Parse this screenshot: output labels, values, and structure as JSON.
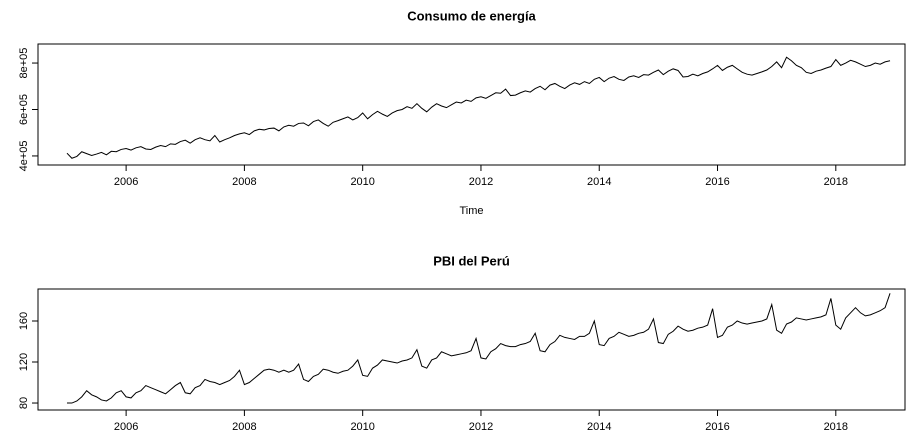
{
  "chart_data": [
    {
      "type": "line",
      "title": "Consumo de energía",
      "x_label": "Time",
      "x": [
        2005,
        2005.083,
        2005.167,
        2005.25,
        2005.333,
        2005.417,
        2005.5,
        2005.583,
        2005.667,
        2005.75,
        2005.833,
        2005.917,
        2006,
        2006.083,
        2006.167,
        2006.25,
        2006.333,
        2006.417,
        2006.5,
        2006.583,
        2006.667,
        2006.75,
        2006.833,
        2006.917,
        2007,
        2007.083,
        2007.167,
        2007.25,
        2007.333,
        2007.417,
        2007.5,
        2007.583,
        2007.667,
        2007.75,
        2007.833,
        2007.917,
        2008,
        2008.083,
        2008.167,
        2008.25,
        2008.333,
        2008.417,
        2008.5,
        2008.583,
        2008.667,
        2008.75,
        2008.833,
        2008.917,
        2009,
        2009.083,
        2009.167,
        2009.25,
        2009.333,
        2009.417,
        2009.5,
        2009.583,
        2009.667,
        2009.75,
        2009.833,
        2009.917,
        2010,
        2010.083,
        2010.167,
        2010.25,
        2010.333,
        2010.417,
        2010.5,
        2010.583,
        2010.667,
        2010.75,
        2010.833,
        2010.917,
        2011,
        2011.083,
        2011.167,
        2011.25,
        2011.333,
        2011.417,
        2011.5,
        2011.583,
        2011.667,
        2011.75,
        2011.833,
        2011.917,
        2012,
        2012.083,
        2012.167,
        2012.25,
        2012.333,
        2012.417,
        2012.5,
        2012.583,
        2012.667,
        2012.75,
        2012.833,
        2012.917,
        2013,
        2013.083,
        2013.167,
        2013.25,
        2013.333,
        2013.417,
        2013.5,
        2013.583,
        2013.667,
        2013.75,
        2013.833,
        2013.917,
        2014,
        2014.083,
        2014.167,
        2014.25,
        2014.333,
        2014.417,
        2014.5,
        2014.583,
        2014.667,
        2014.75,
        2014.833,
        2014.917,
        2015,
        2015.083,
        2015.167,
        2015.25,
        2015.333,
        2015.417,
        2015.5,
        2015.583,
        2015.667,
        2015.75,
        2015.833,
        2015.917,
        2016,
        2016.083,
        2016.167,
        2016.25,
        2016.333,
        2016.417,
        2016.5,
        2016.583,
        2016.667,
        2016.75,
        2016.833,
        2016.917,
        2017,
        2017.083,
        2017.167,
        2017.25,
        2017.333,
        2017.417,
        2017.5,
        2017.583,
        2017.667,
        2017.75,
        2017.833,
        2017.917,
        2018,
        2018.083,
        2018.167,
        2018.25,
        2018.333,
        2018.417,
        2018.5,
        2018.583,
        2018.667,
        2018.75,
        2018.833,
        2018.917
      ],
      "values": [
        412000,
        390000,
        398000,
        418000,
        410000,
        402000,
        408000,
        415000,
        405000,
        420000,
        418000,
        428000,
        432000,
        425000,
        435000,
        440000,
        430000,
        428000,
        438000,
        445000,
        440000,
        452000,
        450000,
        462000,
        468000,
        455000,
        470000,
        478000,
        470000,
        465000,
        488000,
        460000,
        470000,
        478000,
        488000,
        495000,
        500000,
        492000,
        508000,
        515000,
        512000,
        518000,
        520000,
        508000,
        525000,
        532000,
        528000,
        540000,
        542000,
        530000,
        548000,
        555000,
        540000,
        528000,
        545000,
        552000,
        560000,
        568000,
        555000,
        565000,
        585000,
        560000,
        578000,
        592000,
        580000,
        570000,
        585000,
        595000,
        600000,
        612000,
        605000,
        625000,
        605000,
        590000,
        610000,
        625000,
        615000,
        608000,
        620000,
        632000,
        628000,
        640000,
        635000,
        650000,
        655000,
        648000,
        660000,
        672000,
        670000,
        688000,
        660000,
        662000,
        672000,
        680000,
        675000,
        690000,
        700000,
        685000,
        705000,
        712000,
        700000,
        690000,
        705000,
        715000,
        708000,
        720000,
        712000,
        730000,
        738000,
        720000,
        735000,
        742000,
        730000,
        725000,
        740000,
        745000,
        738000,
        750000,
        748000,
        760000,
        770000,
        750000,
        765000,
        775000,
        768000,
        740000,
        742000,
        752000,
        745000,
        755000,
        762000,
        775000,
        790000,
        768000,
        782000,
        790000,
        775000,
        760000,
        752000,
        748000,
        755000,
        762000,
        770000,
        785000,
        805000,
        780000,
        825000,
        810000,
        790000,
        780000,
        760000,
        755000,
        765000,
        770000,
        778000,
        785000,
        815000,
        790000,
        800000,
        812000,
        805000,
        795000,
        785000,
        790000,
        800000,
        795000,
        805000,
        810000
      ],
      "color": "#000000",
      "xlim": [
        2004.51,
        2019.17
      ],
      "xticks": [
        2006,
        2008,
        2010,
        2012,
        2014,
        2016,
        2018
      ],
      "ylim": [
        361000,
        882000
      ],
      "yticks": [
        {
          "value": 400000,
          "label": "4e+05"
        },
        {
          "value": 600000,
          "label": "6e+05"
        },
        {
          "value": 800000,
          "label": "8e+05"
        }
      ]
    },
    {
      "type": "line",
      "title": "PBI del Perú",
      "x": [
        2005,
        2005.083,
        2005.167,
        2005.25,
        2005.333,
        2005.417,
        2005.5,
        2005.583,
        2005.667,
        2005.75,
        2005.833,
        2005.917,
        2006,
        2006.083,
        2006.167,
        2006.25,
        2006.333,
        2006.417,
        2006.5,
        2006.583,
        2006.667,
        2006.75,
        2006.833,
        2006.917,
        2007,
        2007.083,
        2007.167,
        2007.25,
        2007.333,
        2007.417,
        2007.5,
        2007.583,
        2007.667,
        2007.75,
        2007.833,
        2007.917,
        2008,
        2008.083,
        2008.167,
        2008.25,
        2008.333,
        2008.417,
        2008.5,
        2008.583,
        2008.667,
        2008.75,
        2008.833,
        2008.917,
        2009,
        2009.083,
        2009.167,
        2009.25,
        2009.333,
        2009.417,
        2009.5,
        2009.583,
        2009.667,
        2009.75,
        2009.833,
        2009.917,
        2010,
        2010.083,
        2010.167,
        2010.25,
        2010.333,
        2010.417,
        2010.5,
        2010.583,
        2010.667,
        2010.75,
        2010.833,
        2010.917,
        2011,
        2011.083,
        2011.167,
        2011.25,
        2011.333,
        2011.417,
        2011.5,
        2011.583,
        2011.667,
        2011.75,
        2011.833,
        2011.917,
        2012,
        2012.083,
        2012.167,
        2012.25,
        2012.333,
        2012.417,
        2012.5,
        2012.583,
        2012.667,
        2012.75,
        2012.833,
        2012.917,
        2013,
        2013.083,
        2013.167,
        2013.25,
        2013.333,
        2013.417,
        2013.5,
        2013.583,
        2013.667,
        2013.75,
        2013.833,
        2013.917,
        2014,
        2014.083,
        2014.167,
        2014.25,
        2014.333,
        2014.417,
        2014.5,
        2014.583,
        2014.667,
        2014.75,
        2014.833,
        2014.917,
        2015,
        2015.083,
        2015.167,
        2015.25,
        2015.333,
        2015.417,
        2015.5,
        2015.583,
        2015.667,
        2015.75,
        2015.833,
        2015.917,
        2016,
        2016.083,
        2016.167,
        2016.25,
        2016.333,
        2016.417,
        2016.5,
        2016.583,
        2016.667,
        2016.75,
        2016.833,
        2016.917,
        2017,
        2017.083,
        2017.167,
        2017.25,
        2017.333,
        2017.417,
        2017.5,
        2017.583,
        2017.667,
        2017.75,
        2017.833,
        2017.917,
        2018,
        2018.083,
        2018.167,
        2018.25,
        2018.333,
        2018.417,
        2018.5,
        2018.583,
        2018.667,
        2018.75,
        2018.833,
        2018.917
      ],
      "values": [
        80,
        80,
        82,
        86,
        92,
        88,
        86,
        83,
        82,
        85,
        90,
        92,
        86,
        85,
        90,
        92,
        97,
        95,
        93,
        91,
        89,
        93,
        97,
        100,
        90,
        89,
        95,
        97,
        103,
        101,
        100,
        98,
        100,
        102,
        106,
        112,
        98,
        100,
        104,
        108,
        112,
        113,
        112,
        110,
        112,
        110,
        112,
        118,
        103,
        101,
        106,
        108,
        113,
        112,
        110,
        109,
        111,
        112,
        116,
        122,
        107,
        106,
        114,
        117,
        122,
        121,
        120,
        119,
        121,
        122,
        124,
        132,
        116,
        114,
        122,
        124,
        130,
        128,
        126,
        127,
        128,
        129,
        131,
        143,
        124,
        123,
        130,
        133,
        138,
        136,
        135,
        135,
        137,
        138,
        140,
        148,
        131,
        130,
        137,
        140,
        146,
        144,
        143,
        142,
        145,
        145,
        148,
        160,
        137,
        136,
        143,
        145,
        149,
        147,
        145,
        146,
        148,
        149,
        152,
        162,
        139,
        138,
        147,
        150,
        155,
        152,
        150,
        151,
        153,
        154,
        156,
        172,
        144,
        146,
        154,
        156,
        160,
        158,
        157,
        158,
        159,
        160,
        162,
        176,
        151,
        148,
        157,
        159,
        163,
        162,
        161,
        162,
        163,
        164,
        166,
        182,
        156,
        152,
        163,
        168,
        173,
        168,
        165,
        166,
        168,
        170,
        173,
        187
      ],
      "color": "#000000",
      "xlim": [
        2004.51,
        2019.17
      ],
      "xticks": [
        2006,
        2008,
        2010,
        2012,
        2014,
        2016,
        2018
      ],
      "ylim": [
        73.2,
        191.2
      ],
      "yticks": [
        80,
        120,
        160
      ]
    }
  ]
}
